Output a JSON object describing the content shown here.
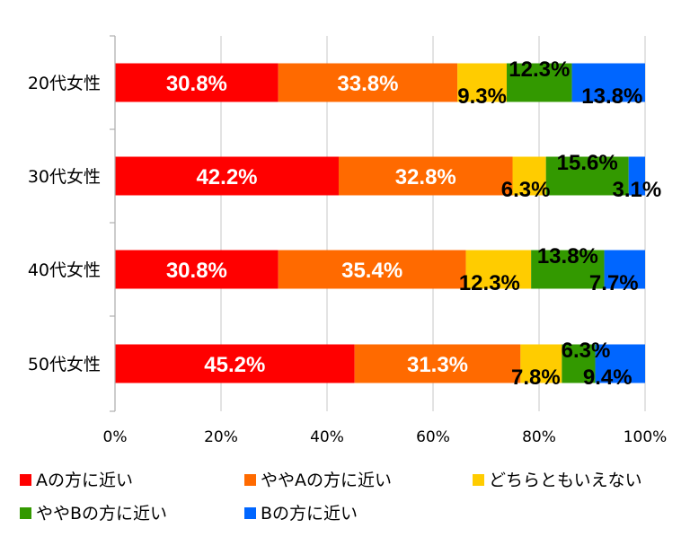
{
  "chart_data": {
    "type": "bar",
    "orientation": "horizontal",
    "stacked": true,
    "categories": [
      "20代女性",
      "30代女性",
      "40代女性",
      "50代女性"
    ],
    "series": [
      {
        "name": "Aの方に近い",
        "color": "#ff0000",
        "values": [
          30.8,
          42.2,
          30.8,
          45.2
        ],
        "labels": [
          "30.8%",
          "42.2%",
          "30.8%",
          "45.2%"
        ]
      },
      {
        "name": "ややAの方に近い",
        "color": "#ff6a00",
        "values": [
          33.8,
          32.8,
          35.4,
          31.3
        ],
        "labels": [
          "33.8%",
          "32.8%",
          "35.4%",
          "31.3%"
        ]
      },
      {
        "name": "どちらともいえない",
        "color": "#ffcc00",
        "values": [
          9.3,
          6.3,
          12.3,
          7.8
        ],
        "labels": [
          "9.3%",
          "6.3%",
          "12.3%",
          "7.8%"
        ]
      },
      {
        "name": "ややBの方に近い",
        "color": "#339900",
        "values": [
          12.3,
          15.6,
          13.8,
          6.3
        ],
        "labels": [
          "12.3%",
          "15.6%",
          "13.8%",
          "6.3%"
        ]
      },
      {
        "name": "Bの方に近い",
        "color": "#0066ff",
        "values": [
          13.8,
          3.1,
          7.7,
          9.4
        ],
        "labels": [
          "13.8%",
          "3.1%",
          "7.7%",
          "9.4%"
        ]
      }
    ],
    "xlim": [
      0,
      100
    ],
    "xticks": [
      "0%",
      "20%",
      "40%",
      "60%",
      "80%",
      "100%"
    ],
    "grid": true,
    "legend_position": "bottom"
  }
}
